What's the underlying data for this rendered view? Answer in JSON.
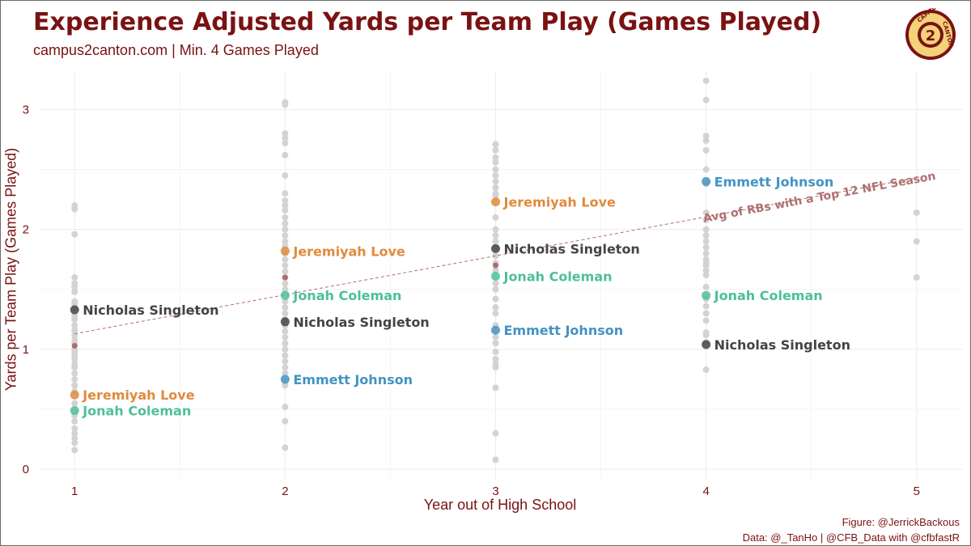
{
  "header": {
    "title": "Experience Adjusted Yards per Team Play (Games Played)",
    "subtitle": "campus2canton.com | Min. 4 Games Played"
  },
  "logo": {
    "text_top": "CAMPUS",
    "text_right": "CANTON",
    "numeral": "2"
  },
  "caption": {
    "line1": "Figure: @JerrickBackous",
    "line2": "Data: @_TanHo | @CFB_Data with @cfbfastR"
  },
  "colors": {
    "title": "#7a1212",
    "background_points": "#d3d3d3",
    "reference_line": "#b07070",
    "reference_points": "#a35a5a",
    "Jeremiyah Love": "#e08a3c",
    "Jonah Coleman": "#4dbf9a",
    "Nicholas Singleton": "#444444",
    "Emmett Johnson": "#4393c3"
  },
  "chart_data": {
    "type": "scatter",
    "title": "Experience Adjusted Yards per Team Play (Games Played)",
    "xlabel": "Year out of High School",
    "ylabel": "Yards per Team Play (Games Played)",
    "xlim": [
      0.83,
      5.22
    ],
    "ylim": [
      -0.08,
      3.32
    ],
    "x_ticks": [
      1,
      2,
      3,
      4,
      5
    ],
    "y_ticks": [
      0,
      1,
      2,
      3
    ],
    "grid": true,
    "background_points": [
      {
        "x": 1,
        "ys": [
          2.2,
          2.17,
          1.96,
          1.6,
          1.55,
          1.52,
          1.48,
          1.4,
          1.38,
          1.35,
          1.28,
          1.25,
          1.2,
          1.16,
          1.12,
          1.08,
          1.05,
          1.0,
          0.98,
          0.95,
          0.92,
          0.88,
          0.85,
          0.8,
          0.75,
          0.7,
          0.65,
          0.55,
          0.45,
          0.4,
          0.34,
          0.3,
          0.26,
          0.22,
          0.16
        ]
      },
      {
        "x": 2,
        "ys": [
          3.06,
          3.04,
          2.8,
          2.76,
          2.72,
          2.62,
          2.45,
          2.3,
          2.24,
          2.2,
          2.16,
          2.1,
          2.05,
          2.0,
          1.95,
          1.9,
          1.86,
          1.8,
          1.75,
          1.7,
          1.65,
          1.6,
          1.55,
          1.5,
          1.4,
          1.35,
          1.3,
          1.25,
          1.2,
          1.15,
          1.1,
          1.05,
          1.0,
          0.95,
          0.9,
          0.85,
          0.8,
          0.7,
          0.52,
          0.4,
          0.18
        ]
      },
      {
        "x": 3,
        "ys": [
          2.71,
          2.66,
          2.6,
          2.56,
          2.5,
          2.45,
          2.4,
          2.35,
          2.3,
          2.28,
          2.1,
          2.0,
          1.95,
          1.9,
          1.85,
          1.78,
          1.72,
          1.66,
          1.55,
          1.5,
          1.42,
          1.35,
          1.3,
          1.2,
          1.1,
          1.05,
          0.98,
          0.92,
          0.88,
          0.85,
          0.68,
          0.3,
          0.08
        ]
      },
      {
        "x": 4,
        "ys": [
          3.24,
          3.08,
          2.78,
          2.74,
          2.66,
          2.5,
          2.38,
          2.14,
          2.08,
          2.0,
          1.95,
          1.9,
          1.85,
          1.8,
          1.75,
          1.72,
          1.7,
          1.66,
          1.62,
          1.52,
          1.42,
          1.36,
          1.3,
          1.24,
          1.14,
          1.12,
          1.06,
          0.83
        ]
      },
      {
        "x": 5,
        "ys": [
          2.14,
          1.9,
          1.6
        ]
      }
    ],
    "reference": {
      "label": "Avg of RBs with a Top 12 NFL Season",
      "points": [
        {
          "x": 1,
          "y": 1.03
        },
        {
          "x": 2,
          "y": 1.6
        },
        {
          "x": 3,
          "y": 1.7
        }
      ],
      "trend": {
        "x0": 1,
        "y0": 1.13,
        "x1": 5,
        "y1": 2.43
      }
    },
    "series": [
      {
        "name": "Nicholas Singleton",
        "points": [
          {
            "x": 1,
            "y": 1.33
          },
          {
            "x": 2,
            "y": 1.23
          },
          {
            "x": 3,
            "y": 1.84
          },
          {
            "x": 4,
            "y": 1.04
          }
        ]
      },
      {
        "name": "Jeremiyah Love",
        "points": [
          {
            "x": 1,
            "y": 0.62
          },
          {
            "x": 2,
            "y": 1.82
          },
          {
            "x": 3,
            "y": 2.23
          }
        ]
      },
      {
        "name": "Jonah Coleman",
        "points": [
          {
            "x": 1,
            "y": 0.49
          },
          {
            "x": 2,
            "y": 1.45
          },
          {
            "x": 3,
            "y": 1.61
          },
          {
            "x": 4,
            "y": 1.45
          }
        ]
      },
      {
        "name": "Emmett Johnson",
        "points": [
          {
            "x": 2,
            "y": 0.75
          },
          {
            "x": 3,
            "y": 1.16
          },
          {
            "x": 4,
            "y": 2.4
          }
        ]
      }
    ]
  }
}
